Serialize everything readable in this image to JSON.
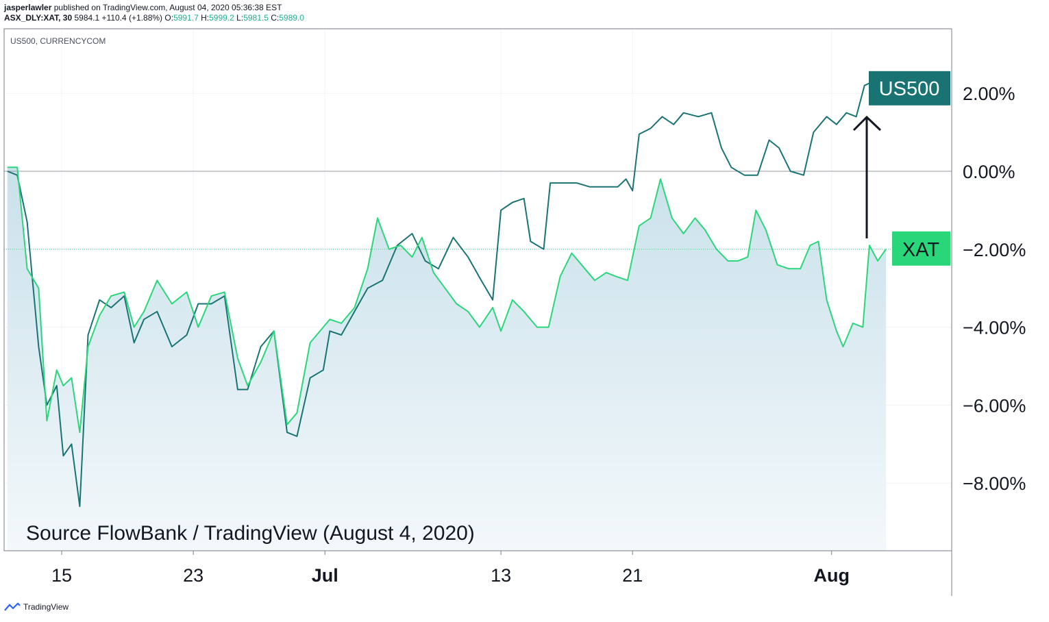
{
  "header": {
    "publisher": "jasperlawler",
    "published_text": "published on TradingView.com, August 04, 2020 05:36:38 EST",
    "symbol": "ASX_DLY:XAT, 30",
    "last": "5984.1",
    "change": "+110.4 (+1.88%)",
    "o_label": "O:",
    "o": "5991.7",
    "h_label": "H:",
    "h": "5999.2",
    "l_label": "L:",
    "l": "5981.5",
    "c_label": "C:",
    "c": "5989.0"
  },
  "pane_label": "US500, CURRENCYCOM",
  "source_note": "Source FlowBank / TradingView (August 4, 2020)",
  "footer": {
    "brand": "TradingView"
  },
  "colors": {
    "us500": "#1a7373",
    "xat": "#2ad67a",
    "fill_top": "#c9e1ea",
    "fill_bottom": "#f3f8fb"
  },
  "chart_data": {
    "type": "line",
    "ylim": [
      -10,
      3.5
    ],
    "y_ticks": [
      2,
      0,
      -2,
      -4,
      -6,
      -8
    ],
    "y_tick_labels": [
      "2.00%",
      "0.00%",
      "−2.00%",
      "−4.00%",
      "−6.00%",
      "−8.00%"
    ],
    "x_ticks": [
      {
        "x": 3.5,
        "label": "15"
      },
      {
        "x": 11.5,
        "label": "23"
      },
      {
        "x": 19.5,
        "label": "Jul"
      },
      {
        "x": 30.2,
        "label": "13"
      },
      {
        "x": 38.2,
        "label": "21"
      },
      {
        "x": 50.3,
        "label": "Aug"
      }
    ],
    "xlim": [
      0,
      57.6
    ],
    "series": [
      {
        "name": "US500",
        "label": "US500",
        "last_y": 2.2,
        "points": [
          [
            0.2,
            0
          ],
          [
            0.8,
            -0.1
          ],
          [
            1.4,
            -1.3
          ],
          [
            2.1,
            -4.5
          ],
          [
            2.6,
            -6
          ],
          [
            3.2,
            -5.5
          ],
          [
            3.6,
            -7.3
          ],
          [
            4.1,
            -7
          ],
          [
            4.6,
            -8.6
          ],
          [
            5.1,
            -4.2
          ],
          [
            5.8,
            -3.3
          ],
          [
            6.5,
            -3.5
          ],
          [
            7.3,
            -3.2
          ],
          [
            7.9,
            -4.4
          ],
          [
            8.5,
            -3.8
          ],
          [
            9.3,
            -3.6
          ],
          [
            10.2,
            -4.5
          ],
          [
            11.1,
            -4.2
          ],
          [
            11.8,
            -3.4
          ],
          [
            12.6,
            -3.4
          ],
          [
            13.4,
            -3.2
          ],
          [
            14.2,
            -5.6
          ],
          [
            14.8,
            -5.6
          ],
          [
            15.6,
            -4.5
          ],
          [
            16.4,
            -4.1
          ],
          [
            17.2,
            -6.7
          ],
          [
            17.8,
            -6.8
          ],
          [
            18.6,
            -5.3
          ],
          [
            19.4,
            -5.1
          ],
          [
            19.8,
            -4.1
          ],
          [
            20.5,
            -4.2
          ],
          [
            21.3,
            -3.6
          ],
          [
            22.1,
            -3.0
          ],
          [
            23,
            -2.8
          ],
          [
            23.9,
            -1.9
          ],
          [
            24.8,
            -1.6
          ],
          [
            25.6,
            -2.3
          ],
          [
            26.4,
            -2.5
          ],
          [
            27.3,
            -1.7
          ],
          [
            28.2,
            -2.2
          ],
          [
            29,
            -2.8
          ],
          [
            29.7,
            -3.3
          ],
          [
            30.2,
            -1.0
          ],
          [
            30.9,
            -0.8
          ],
          [
            31.6,
            -0.7
          ],
          [
            32,
            -1.8
          ],
          [
            32.8,
            -2.0
          ],
          [
            33.2,
            -0.3
          ],
          [
            34,
            -0.3
          ],
          [
            34.8,
            -0.3
          ],
          [
            35.6,
            -0.4
          ],
          [
            36.5,
            -0.4
          ],
          [
            37.3,
            -0.4
          ],
          [
            37.8,
            -0.2
          ],
          [
            38.2,
            -0.5
          ],
          [
            38.6,
            0.95
          ],
          [
            39.3,
            1.1
          ],
          [
            40,
            1.4
          ],
          [
            40.7,
            1.2
          ],
          [
            41.3,
            1.5
          ],
          [
            42.2,
            1.4
          ],
          [
            43,
            1.5
          ],
          [
            43.6,
            0.6
          ],
          [
            44.2,
            0.1
          ],
          [
            45,
            -0.1
          ],
          [
            45.8,
            -0.1
          ],
          [
            46.5,
            0.8
          ],
          [
            47.1,
            0.6
          ],
          [
            47.8,
            0.0
          ],
          [
            48.6,
            -0.1
          ],
          [
            49.2,
            1.0
          ],
          [
            50,
            1.4
          ],
          [
            50.6,
            1.2
          ],
          [
            51.2,
            1.5
          ],
          [
            51.8,
            1.4
          ],
          [
            52.3,
            2.2
          ],
          [
            52.8,
            2.3
          ],
          [
            53.2,
            2.2
          ]
        ]
      },
      {
        "name": "XAT",
        "label": "XAT",
        "last_y": -2.0,
        "points": [
          [
            0.2,
            0.1
          ],
          [
            0.8,
            0.1
          ],
          [
            1.4,
            -2.5
          ],
          [
            2.1,
            -3.0
          ],
          [
            2.6,
            -6.4
          ],
          [
            3.2,
            -5.1
          ],
          [
            3.6,
            -5.5
          ],
          [
            4.1,
            -5.3
          ],
          [
            4.6,
            -6.7
          ],
          [
            5.1,
            -4.5
          ],
          [
            5.8,
            -3.7
          ],
          [
            6.5,
            -3.2
          ],
          [
            7.3,
            -3.1
          ],
          [
            7.9,
            -4.0
          ],
          [
            8.5,
            -3.6
          ],
          [
            9.3,
            -2.8
          ],
          [
            10.2,
            -3.4
          ],
          [
            11.1,
            -3.1
          ],
          [
            11.8,
            -4.0
          ],
          [
            12.6,
            -3.2
          ],
          [
            13.4,
            -3.1
          ],
          [
            14.2,
            -4.8
          ],
          [
            14.8,
            -5.5
          ],
          [
            15.6,
            -4.9
          ],
          [
            16.4,
            -4.1
          ],
          [
            17.2,
            -6.5
          ],
          [
            17.8,
            -6.2
          ],
          [
            18.6,
            -4.4
          ],
          [
            19.4,
            -4.0
          ],
          [
            19.8,
            -3.8
          ],
          [
            20.5,
            -3.9
          ],
          [
            21.3,
            -3.5
          ],
          [
            22.1,
            -2.5
          ],
          [
            22.7,
            -1.2
          ],
          [
            23.4,
            -2.0
          ],
          [
            24.1,
            -1.9
          ],
          [
            24.8,
            -2.2
          ],
          [
            25.4,
            -1.7
          ],
          [
            26.1,
            -2.6
          ],
          [
            26.8,
            -3.0
          ],
          [
            27.5,
            -3.4
          ],
          [
            28.2,
            -3.6
          ],
          [
            28.9,
            -4.0
          ],
          [
            29.7,
            -3.5
          ],
          [
            30.2,
            -4.1
          ],
          [
            30.9,
            -3.3
          ],
          [
            31.6,
            -3.6
          ],
          [
            32.4,
            -4.0
          ],
          [
            33.1,
            -4.0
          ],
          [
            33.8,
            -2.7
          ],
          [
            34.5,
            -2.1
          ],
          [
            35.3,
            -2.5
          ],
          [
            35.9,
            -2.8
          ],
          [
            36.6,
            -2.6
          ],
          [
            37.2,
            -2.7
          ],
          [
            37.9,
            -2.8
          ],
          [
            38.6,
            -1.4
          ],
          [
            39.3,
            -1.2
          ],
          [
            39.9,
            -0.2
          ],
          [
            40.6,
            -1.2
          ],
          [
            41.3,
            -1.6
          ],
          [
            42,
            -1.2
          ],
          [
            42.6,
            -1.5
          ],
          [
            43.3,
            -2.0
          ],
          [
            44,
            -2.3
          ],
          [
            44.6,
            -2.3
          ],
          [
            45.2,
            -2.2
          ],
          [
            45.7,
            -1.0
          ],
          [
            46.3,
            -1.5
          ],
          [
            47,
            -2.4
          ],
          [
            47.7,
            -2.5
          ],
          [
            48.4,
            -2.5
          ],
          [
            49,
            -1.9
          ],
          [
            49.5,
            -1.8
          ],
          [
            50,
            -3.3
          ],
          [
            50.6,
            -4.1
          ],
          [
            51,
            -4.5
          ],
          [
            51.6,
            -3.9
          ],
          [
            52.2,
            -4.0
          ],
          [
            52.6,
            -1.9
          ],
          [
            53.1,
            -2.3
          ],
          [
            53.6,
            -2.0
          ]
        ]
      }
    ]
  }
}
